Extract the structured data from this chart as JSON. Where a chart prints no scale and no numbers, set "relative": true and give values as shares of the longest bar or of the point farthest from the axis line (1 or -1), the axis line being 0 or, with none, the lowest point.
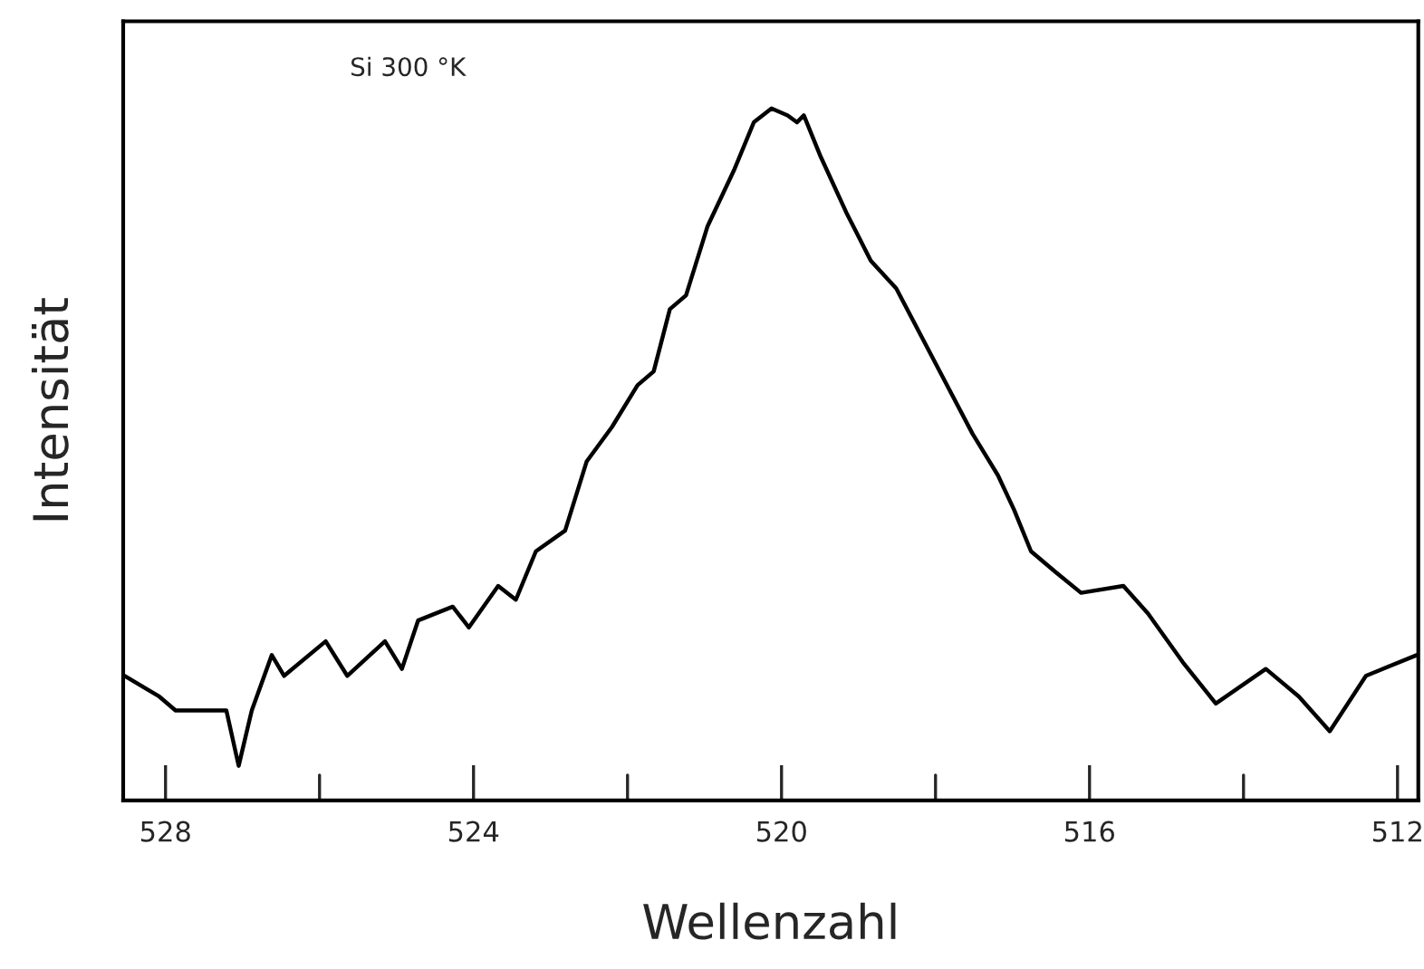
{
  "chart_data": {
    "type": "line",
    "xlabel": "Wellenzahl",
    "ylabel": "Intensität",
    "relative": true,
    "annotations": [
      "Si 300 °K"
    ],
    "xlim": [
      528.55,
      511.73
    ],
    "xticks": [
      528,
      {
        "value": 526,
        "label": null
      },
      524,
      {
        "value": 522,
        "label": null
      },
      520,
      {
        "value": 518,
        "label": null
      },
      516,
      {
        "value": 514,
        "label": null
      },
      512
    ],
    "tick_labels": "x",
    "grid": false,
    "legend": false,
    "series": [
      {
        "color": "#000000",
        "x": [
          528.53,
          528.08,
          527.87,
          527.21,
          527.05,
          526.88,
          526.62,
          526.46,
          525.92,
          525.64,
          525.15,
          524.93,
          524.72,
          524.27,
          524.06,
          523.68,
          523.45,
          523.19,
          522.81,
          522.53,
          522.2,
          521.87,
          521.66,
          521.45,
          521.24,
          520.96,
          520.62,
          520.36,
          520.13,
          519.92,
          519.8,
          519.71,
          519.49,
          519.16,
          518.84,
          518.51,
          518.18,
          517.85,
          517.52,
          517.19,
          516.98,
          516.76,
          516.44,
          516.11,
          515.56,
          515.24,
          514.79,
          514.36,
          513.71,
          513.28,
          512.88,
          512.41,
          511.75
        ],
        "values": [
          0.18,
          0.15,
          0.13,
          0.13,
          0.05,
          0.13,
          0.21,
          0.18,
          0.23,
          0.18,
          0.23,
          0.19,
          0.26,
          0.28,
          0.25,
          0.31,
          0.29,
          0.36,
          0.39,
          0.49,
          0.54,
          0.6,
          0.62,
          0.71,
          0.73,
          0.83,
          0.91,
          0.98,
          1.0,
          0.99,
          0.98,
          0.99,
          0.93,
          0.85,
          0.78,
          0.74,
          0.67,
          0.6,
          0.53,
          0.47,
          0.42,
          0.36,
          0.33,
          0.3,
          0.31,
          0.27,
          0.2,
          0.14,
          0.19,
          0.15,
          0.1,
          0.18,
          0.21
        ]
      }
    ]
  }
}
